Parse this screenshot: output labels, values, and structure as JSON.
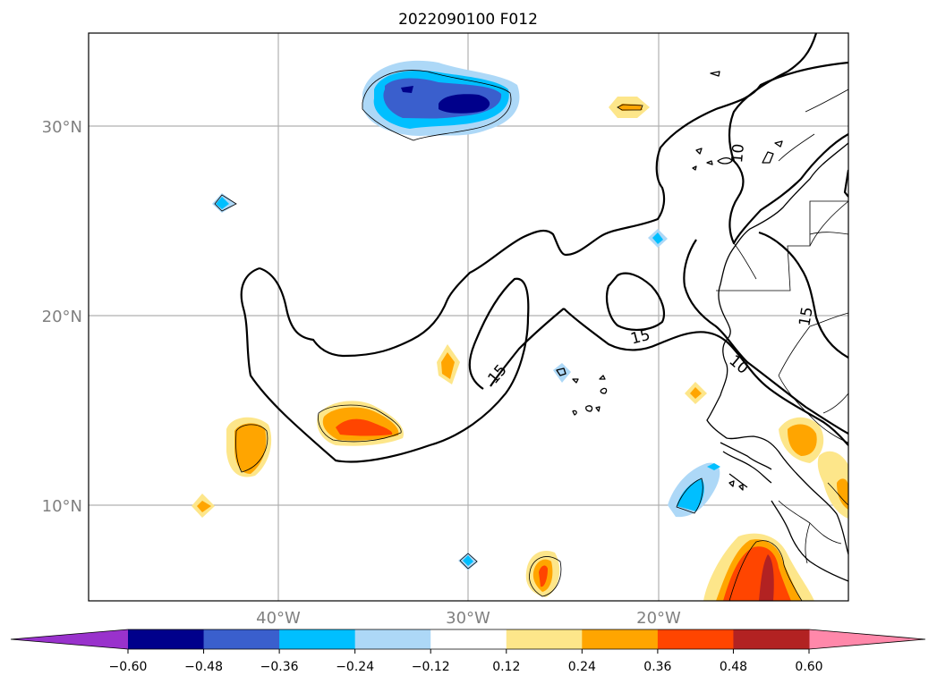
{
  "title": "2022090100 F012",
  "lat_labels": [
    "30°N",
    "20°N",
    "10°N"
  ],
  "lon_labels": [
    "40°W",
    "30°W",
    "20°W"
  ],
  "contour_labels": [
    "15",
    "15",
    "15",
    "10",
    "10"
  ],
  "colorbar": {
    "tick_labels": [
      "−0.60",
      "−0.48",
      "−0.36",
      "−0.24",
      "−0.12",
      "0.12",
      "0.24",
      "0.36",
      "0.48",
      "0.60"
    ],
    "colors": [
      "#9932cc",
      "#00008b",
      "#3a5fcd",
      "#00bfff",
      "#add8f7",
      "#ffffff",
      "#fde68a",
      "#ffa500",
      "#ff4500",
      "#b22222",
      "#ff88aa"
    ]
  },
  "shading_colors": {
    "neg_light": "#add8f7",
    "neg_mid": "#00bfff",
    "neg_strong": "#3a5fcd",
    "neg_max": "#00008b",
    "pos_light": "#fde68a",
    "pos_mid": "#ffa500",
    "pos_strong": "#ff4500",
    "pos_max": "#b22222"
  }
}
